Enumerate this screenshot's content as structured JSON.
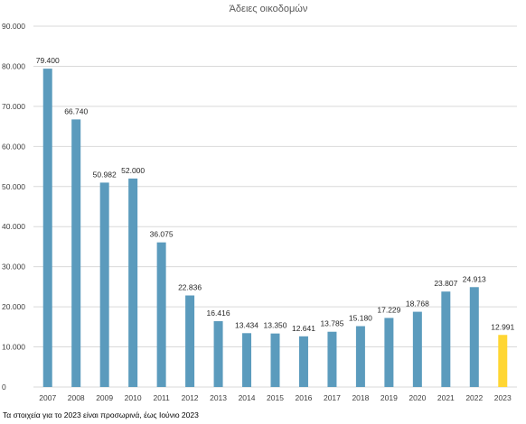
{
  "chart_data": {
    "type": "bar",
    "title": "Άδειες οικοδομών",
    "xlabel": "",
    "ylabel": "",
    "categories": [
      "2007",
      "2008",
      "2009",
      "2010",
      "2011",
      "2012",
      "2013",
      "2014",
      "2015",
      "2016",
      "2017",
      "2018",
      "2019",
      "2020",
      "2021",
      "2022",
      "2023"
    ],
    "values": [
      79400,
      66740,
      50982,
      52000,
      36075,
      22836,
      16416,
      13434,
      13350,
      12641,
      13785,
      15180,
      17229,
      18768,
      23807,
      24913,
      12991
    ],
    "value_labels": [
      "79.400",
      "66.740",
      "50.982",
      "52.000",
      "36.075",
      "22.836",
      "16.416",
      "13.434",
      "13.350",
      "12.641",
      "13.785",
      "15.180",
      "17.229",
      "18.768",
      "23.807",
      "24.913",
      "12.991"
    ],
    "ylim": [
      0,
      90000
    ],
    "yticks": [
      0,
      10000,
      20000,
      30000,
      40000,
      50000,
      60000,
      70000,
      80000,
      90000
    ],
    "ytick_labels": [
      "0",
      "10.000",
      "20.000",
      "30.000",
      "40.000",
      "50.000",
      "60.000",
      "70.000",
      "80.000",
      "90.000"
    ],
    "grid": true,
    "legend": "none",
    "colors": {
      "bar": "#5b9bbd",
      "highlight": "#ffd633",
      "grid": "#d9d9d9"
    },
    "highlight_category": "2023"
  },
  "footnote": "Τα στοιχεία για το 2023 είναι προσωρινά, έως Ιούνιο 2023"
}
